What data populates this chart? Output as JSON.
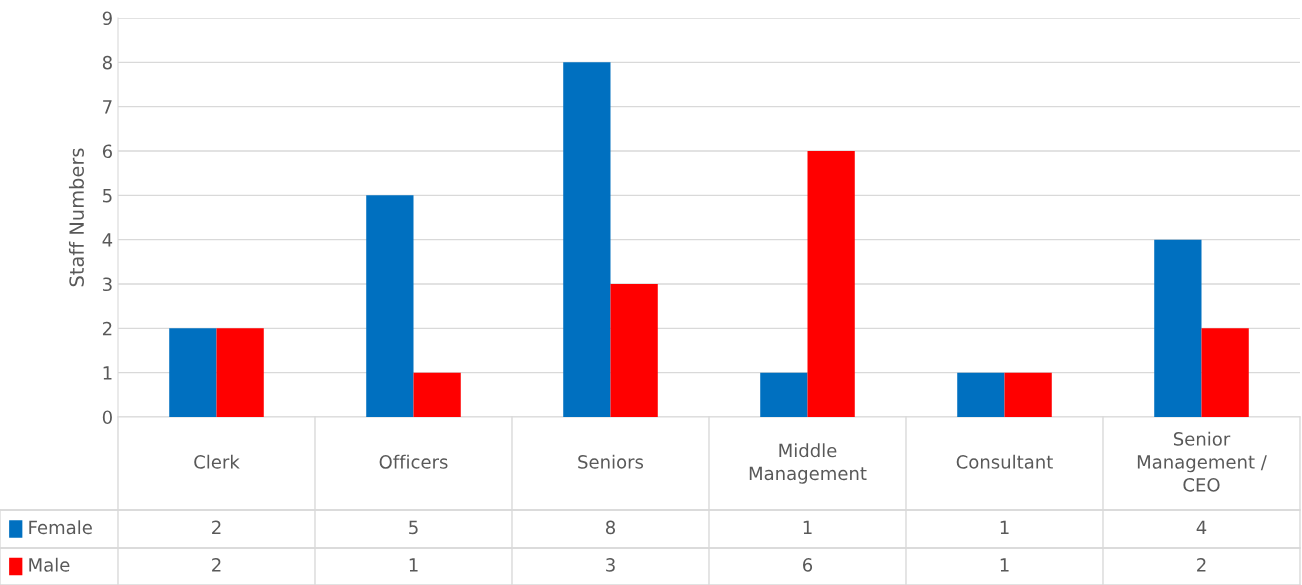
{
  "chart_data": {
    "type": "bar",
    "ylabel": "Staff Numbers",
    "categories": [
      "Clerk",
      "Officers",
      "Seniors",
      "Middle Management",
      "Consultant",
      "Senior Management / CEO"
    ],
    "series": [
      {
        "name": "Female",
        "color": "#0070c0",
        "values": [
          2,
          5,
          8,
          1,
          1,
          4
        ]
      },
      {
        "name": "Male",
        "color": "#ff0000",
        "values": [
          2,
          1,
          3,
          6,
          1,
          2
        ]
      }
    ],
    "ylim": [
      0,
      9
    ],
    "yticks": [
      0,
      1,
      2,
      3,
      4,
      5,
      6,
      7,
      8,
      9
    ],
    "grid": "y",
    "legend": "bottom",
    "data_labels": true
  }
}
